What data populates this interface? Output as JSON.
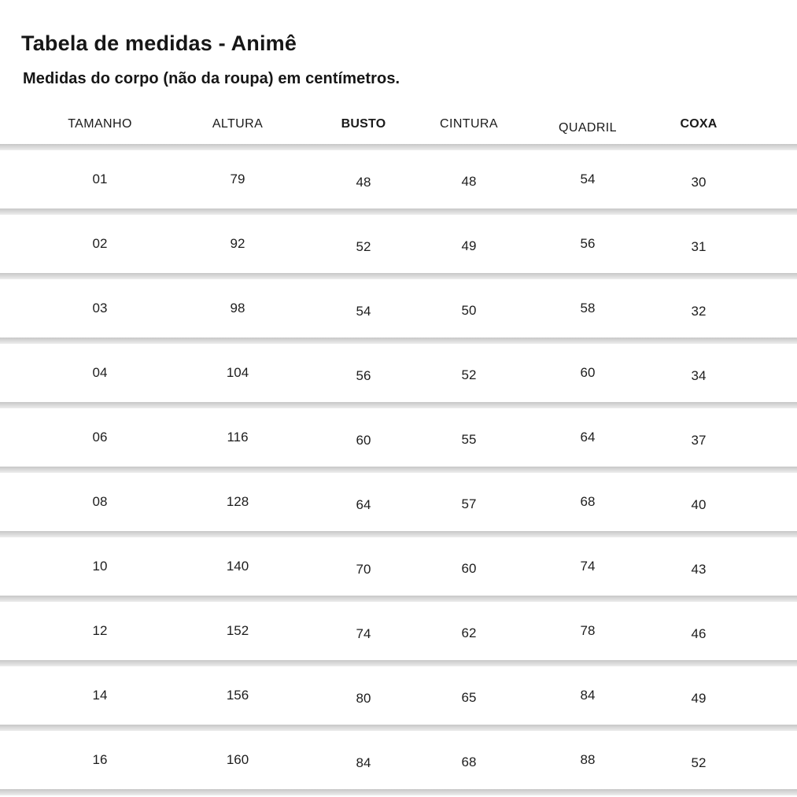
{
  "title": "Tabela de medidas - Animê",
  "subtitle": "Medidas do corpo (não da roupa) em centímetros.",
  "table": {
    "headers": [
      "TAMANHO",
      "ALTURA",
      "BUSTO",
      "CINTURA",
      "QUADRIL",
      "COXA"
    ],
    "rows": [
      [
        "01",
        "79",
        "48",
        "48",
        "54",
        "30"
      ],
      [
        "02",
        "92",
        "52",
        "49",
        "56",
        "31"
      ],
      [
        "03",
        "98",
        "54",
        "50",
        "58",
        "32"
      ],
      [
        "04",
        "104",
        "56",
        "52",
        "60",
        "34"
      ],
      [
        "06",
        "116",
        "60",
        "55",
        "64",
        "37"
      ],
      [
        "08",
        "128",
        "64",
        "57",
        "68",
        "40"
      ],
      [
        "10",
        "140",
        "70",
        "60",
        "74",
        "43"
      ],
      [
        "12",
        "152",
        "74",
        "62",
        "78",
        "46"
      ],
      [
        "14",
        "156",
        "80",
        "65",
        "84",
        "49"
      ],
      [
        "16",
        "160",
        "84",
        "68",
        "88",
        "52"
      ]
    ]
  },
  "colors": {
    "background": "#ffffff",
    "text": "#1c1c1c",
    "divider_top": "#c7c7c7",
    "divider_bottom": "#ededed"
  }
}
